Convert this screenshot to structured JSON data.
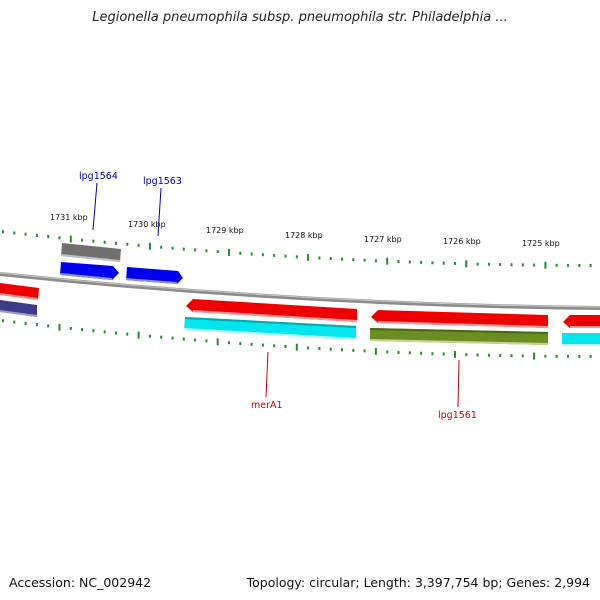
{
  "title": "Legionella pneumophila subsp. pneumophila str. Philadelphia ...",
  "footer": {
    "accession": "Accession: NC_002942",
    "summary": "Topology: circular; Length: 3,397,754 bp; Genes: 2,994"
  },
  "colors": {
    "backbone": "#8a8a8a",
    "tick": "#2a8a2a",
    "label_top": "#0000aa",
    "label_bottom": "#cc0000"
  },
  "kbp_labels": [
    "1731 kbp",
    "1730 kbp",
    "1729 kbp",
    "1728 kbp",
    "1727 kbp",
    "1726 kbp",
    "1725 kbp"
  ],
  "gene_labels": [
    {
      "text": "lpg1564",
      "color": "#0000aa"
    },
    {
      "text": "lpg1563",
      "color": "#0000aa"
    },
    {
      "text": "merA1",
      "color": "#cc0000"
    },
    {
      "text": "lpg1561",
      "color": "#cc0000"
    }
  ],
  "features": [
    {
      "name": "feature-red-left",
      "color": "#ee0000"
    },
    {
      "name": "feature-navy-left",
      "color": "#3b3b8a"
    },
    {
      "name": "feature-gray",
      "color": "#707070"
    },
    {
      "name": "gene-lpg1564",
      "color": "#0000ee"
    },
    {
      "name": "gene-lpg1563",
      "color": "#0000ee"
    },
    {
      "name": "feature-red-mid",
      "color": "#ee0000"
    },
    {
      "name": "gene-merA1",
      "color": "#00e5ee"
    },
    {
      "name": "feature-red-right",
      "color": "#ee0000"
    },
    {
      "name": "gene-lpg1561",
      "color": "#6b8e23"
    },
    {
      "name": "feature-red-edge",
      "color": "#ee0000"
    },
    {
      "name": "feature-cyan-edge",
      "color": "#00e5ee"
    }
  ]
}
